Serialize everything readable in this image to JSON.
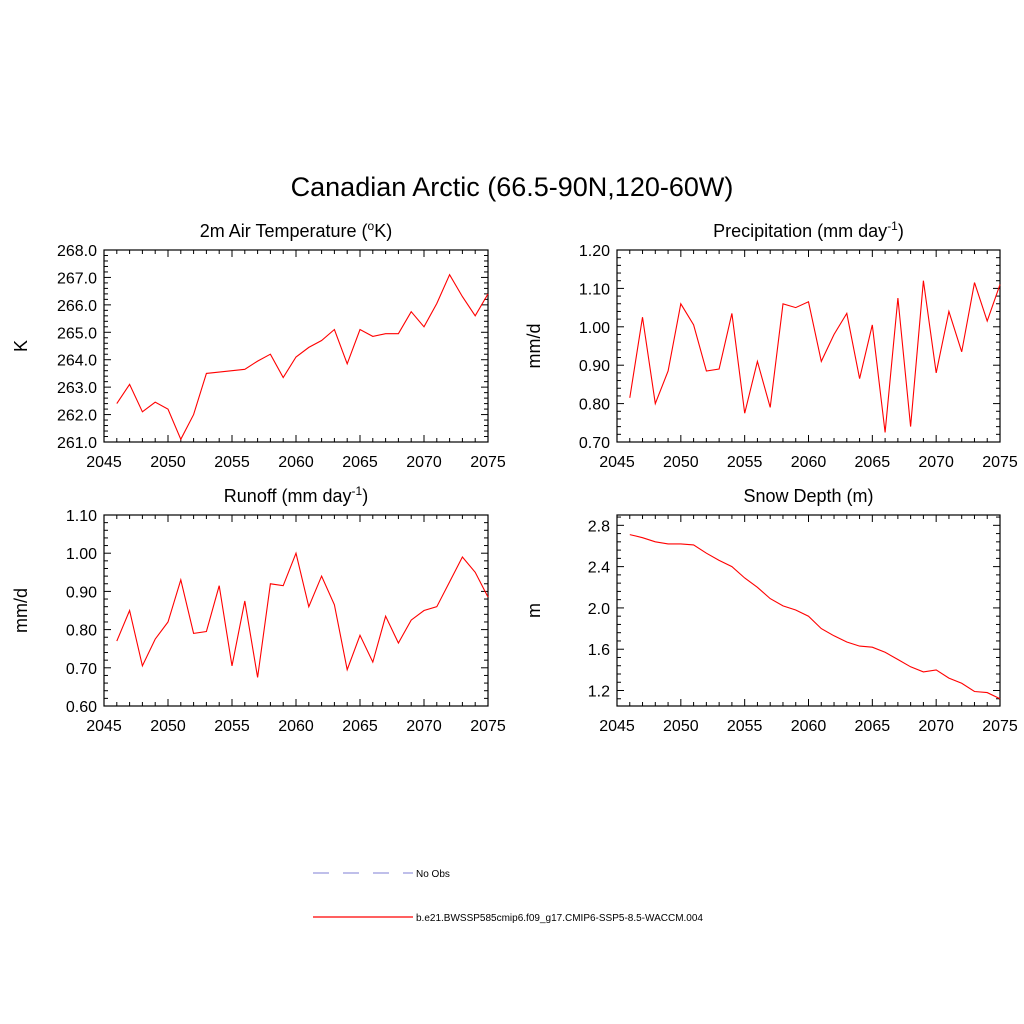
{
  "figure": {
    "title": "Canadian Arctic (66.5-90N,120-60W)"
  },
  "colors": {
    "series": "#ff0000",
    "obs": "#9999dd",
    "axis": "#000000"
  },
  "legend": {
    "placement": "bottom-center",
    "entries": [
      {
        "label": "No Obs",
        "style": "dashed",
        "color": "#9999dd"
      },
      {
        "label": "b.e21.BWSSP585cmip6.f09_g17.CMIP6-SSP5-8.5-WACCM.004",
        "style": "solid",
        "color": "#ff0000"
      }
    ]
  },
  "chart_data": [
    {
      "type": "line",
      "title_main": "2m Air Temperature (",
      "title_sup": "o",
      "title_tail": "K)",
      "ylabel": "K",
      "xlim": [
        2045,
        2075
      ],
      "ylim": [
        261.0,
        268.0
      ],
      "x_ticks": [
        "2045",
        "2050",
        "2055",
        "2060",
        "2065",
        "2070",
        "2075"
      ],
      "y_ticks": [
        "261.0",
        "262.0",
        "263.0",
        "264.0",
        "265.0",
        "266.0",
        "267.0",
        "268.0"
      ],
      "series": [
        {
          "x": [
            2046,
            2047,
            2048,
            2049,
            2050,
            2051,
            2052,
            2053,
            2054,
            2055,
            2056,
            2057,
            2058,
            2059,
            2060,
            2061,
            2062,
            2063,
            2064,
            2065,
            2066,
            2067,
            2068,
            2069,
            2070,
            2071,
            2072,
            2073,
            2074,
            2075
          ],
          "values": [
            262.4,
            263.1,
            262.1,
            262.45,
            262.2,
            261.1,
            262.0,
            263.5,
            263.55,
            263.6,
            263.65,
            263.95,
            264.2,
            263.35,
            264.1,
            264.45,
            264.7,
            265.1,
            263.85,
            265.1,
            264.85,
            264.95,
            264.95,
            265.75,
            265.2,
            266.05,
            267.1,
            266.3,
            265.6,
            266.4
          ]
        }
      ]
    },
    {
      "type": "line",
      "title_main": "Precipitation (mm day",
      "title_sup": "-1",
      "title_tail": ")",
      "ylabel": "mm/d",
      "xlim": [
        2045,
        2075
      ],
      "ylim": [
        0.7,
        1.2
      ],
      "x_ticks": [
        "2045",
        "2050",
        "2055",
        "2060",
        "2065",
        "2070",
        "2075"
      ],
      "y_ticks": [
        "0.70",
        "0.80",
        "0.90",
        "1.00",
        "1.10",
        "1.20"
      ],
      "series": [
        {
          "x": [
            2046,
            2047,
            2048,
            2049,
            2050,
            2051,
            2052,
            2053,
            2054,
            2055,
            2056,
            2057,
            2058,
            2059,
            2060,
            2061,
            2062,
            2063,
            2064,
            2065,
            2066,
            2067,
            2068,
            2069,
            2070,
            2071,
            2072,
            2073,
            2074,
            2075
          ],
          "values": [
            0.815,
            1.025,
            0.8,
            0.885,
            1.06,
            1.005,
            0.885,
            0.89,
            1.035,
            0.775,
            0.91,
            0.79,
            1.06,
            1.05,
            1.065,
            0.91,
            0.98,
            1.035,
            0.865,
            1.005,
            0.725,
            1.075,
            0.74,
            1.12,
            0.88,
            1.04,
            0.935,
            1.115,
            1.015,
            1.11
          ]
        }
      ]
    },
    {
      "type": "line",
      "title_main": "Runoff (mm day",
      "title_sup": "-1",
      "title_tail": ")",
      "ylabel": "mm/d",
      "xlim": [
        2045,
        2075
      ],
      "ylim": [
        0.6,
        1.1
      ],
      "x_ticks": [
        "2045",
        "2050",
        "2055",
        "2060",
        "2065",
        "2070",
        "2075"
      ],
      "y_ticks": [
        "0.60",
        "0.70",
        "0.80",
        "0.90",
        "1.00",
        "1.10"
      ],
      "series": [
        {
          "x": [
            2046,
            2047,
            2048,
            2049,
            2050,
            2051,
            2052,
            2053,
            2054,
            2055,
            2056,
            2057,
            2058,
            2059,
            2060,
            2061,
            2062,
            2063,
            2064,
            2065,
            2066,
            2067,
            2068,
            2069,
            2070,
            2071,
            2072,
            2073,
            2074,
            2075
          ],
          "values": [
            0.77,
            0.85,
            0.705,
            0.775,
            0.82,
            0.93,
            0.79,
            0.795,
            0.915,
            0.705,
            0.875,
            0.675,
            0.92,
            0.915,
            1.0,
            0.86,
            0.94,
            0.865,
            0.695,
            0.785,
            0.715,
            0.835,
            0.765,
            0.825,
            0.85,
            0.86,
            0.925,
            0.99,
            0.95,
            0.885
          ]
        }
      ]
    },
    {
      "type": "line",
      "title_main": "Snow Depth (m)",
      "title_sup": "",
      "title_tail": "",
      "ylabel": "m",
      "xlim": [
        2045,
        2075
      ],
      "ylim": [
        1.05,
        2.9
      ],
      "x_ticks": [
        "2045",
        "2050",
        "2055",
        "2060",
        "2065",
        "2070",
        "2075"
      ],
      "y_ticks": [
        "1.2",
        "1.6",
        "2.0",
        "2.4",
        "2.8"
      ],
      "series": [
        {
          "x": [
            2046,
            2047,
            2048,
            2049,
            2050,
            2051,
            2052,
            2053,
            2054,
            2055,
            2056,
            2057,
            2058,
            2059,
            2060,
            2061,
            2062,
            2063,
            2064,
            2065,
            2066,
            2067,
            2068,
            2069,
            2070,
            2071,
            2072,
            2073,
            2074,
            2075
          ],
          "values": [
            2.71,
            2.68,
            2.64,
            2.62,
            2.62,
            2.61,
            2.53,
            2.46,
            2.4,
            2.29,
            2.2,
            2.09,
            2.02,
            1.98,
            1.92,
            1.8,
            1.73,
            1.67,
            1.63,
            1.62,
            1.57,
            1.5,
            1.43,
            1.38,
            1.4,
            1.32,
            1.27,
            1.19,
            1.18,
            1.12
          ]
        }
      ]
    }
  ]
}
